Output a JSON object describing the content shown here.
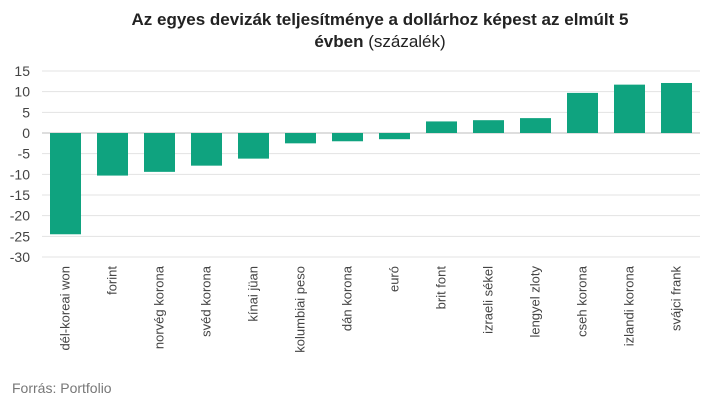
{
  "chart_data": {
    "type": "bar",
    "title_bold_1": "Az egyes devizák teljesítménye a dollárhoz képest az elmúlt 5",
    "title_bold_2": "évben",
    "title_normal": "(százalék)",
    "categories": [
      "dél-koreai won",
      "forint",
      "norvég korona",
      "svéd korona",
      "kínai jüan",
      "kolumbiai peso",
      "dán korona",
      "euró",
      "brit font",
      "izraeli sékel",
      "lengyel zloty",
      "cseh korona",
      "izlandi korona",
      "svájci frank"
    ],
    "values": [
      -24.5,
      -10.3,
      -9.4,
      -7.9,
      -6.2,
      -2.5,
      -2.0,
      -1.5,
      2.8,
      3.1,
      3.6,
      9.7,
      11.7,
      12.1
    ],
    "ylim": [
      -30,
      15
    ],
    "yticks": [
      15,
      10,
      5,
      0,
      -5,
      -10,
      -15,
      -20,
      -25,
      -30
    ],
    "bar_color": "#0fa37f",
    "grid": true,
    "source": "Forrás: Portfolio"
  }
}
